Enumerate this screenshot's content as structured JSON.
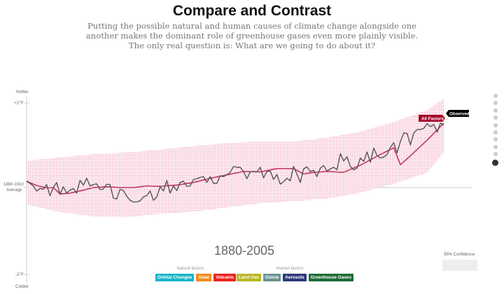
{
  "header": {
    "title": "Compare and Contrast",
    "subtitle_lines": [
      "Putting the possible natural and human causes of climate change alongside one",
      "another makes the dominant role of greenhouse gases even more plainly visible.",
      "The only real question is: What are we going to do about it?"
    ]
  },
  "axis_labels": {
    "hotter": "Hotter",
    "plus2": "+2˚F",
    "baseline_line1": "1880-1910",
    "baseline_line2": "Average",
    "minus2": "-2˚F",
    "colder": "Colder"
  },
  "year_range_label": "1880-2005",
  "confidence_label": "95% Confidence",
  "legend": {
    "natural_title": "Natural factors",
    "human_title": "Human factors",
    "natural": [
      {
        "label": "Orbital Changes",
        "color": "#19b5c9"
      },
      {
        "label": "Solar",
        "color": "#f08b1c"
      },
      {
        "label": "Volcanic",
        "color": "#e8231f"
      }
    ],
    "human": [
      {
        "label": "Land Use",
        "color": "#b8b824"
      },
      {
        "label": "Ozone",
        "color": "#6a9494"
      },
      {
        "label": "Aerosols",
        "color": "#2f3a7a"
      },
      {
        "label": "Greenhouse Gases",
        "color": "#1e6b35"
      }
    ]
  },
  "colors": {
    "observed": "#555555",
    "all_factors": "#c2375d",
    "confidence_band": "#f3b6c8",
    "all_factors_tag": "#a5002a",
    "observed_tag": "#000000"
  },
  "nav_dots": {
    "count": 10,
    "active_index": 9
  },
  "chart_data": {
    "type": "line",
    "xlim": [
      1880,
      2005
    ],
    "ylim": [
      -2,
      2
    ],
    "y_ticks": [
      2,
      0,
      -2
    ],
    "baseline_value": 0,
    "series": [
      {
        "name": "Observed",
        "x": [
          1880,
          1881,
          1882,
          1883,
          1884,
          1885,
          1886,
          1887,
          1888,
          1889,
          1890,
          1891,
          1892,
          1893,
          1894,
          1895,
          1896,
          1897,
          1898,
          1899,
          1900,
          1901,
          1902,
          1903,
          1904,
          1905,
          1906,
          1907,
          1908,
          1909,
          1910,
          1911,
          1912,
          1913,
          1914,
          1915,
          1916,
          1917,
          1918,
          1919,
          1920,
          1921,
          1922,
          1923,
          1924,
          1925,
          1926,
          1927,
          1928,
          1929,
          1930,
          1931,
          1932,
          1933,
          1934,
          1935,
          1936,
          1937,
          1938,
          1939,
          1940,
          1941,
          1942,
          1943,
          1944,
          1945,
          1946,
          1947,
          1948,
          1949,
          1950,
          1951,
          1952,
          1953,
          1954,
          1955,
          1956,
          1957,
          1958,
          1959,
          1960,
          1961,
          1962,
          1963,
          1964,
          1965,
          1966,
          1967,
          1968,
          1969,
          1970,
          1971,
          1972,
          1973,
          1974,
          1975,
          1976,
          1977,
          1978,
          1979,
          1980,
          1981,
          1982,
          1983,
          1984,
          1985,
          1986,
          1987,
          1988,
          1989,
          1990,
          1991,
          1992,
          1993,
          1994,
          1995,
          1996,
          1997,
          1998,
          1999,
          2000,
          2001,
          2002,
          2003,
          2004,
          2005
        ],
        "y": [
          0.15,
          0.1,
          0.04,
          -0.08,
          -0.02,
          -0.04,
          0.07,
          -0.19,
          0.0,
          0.12,
          -0.16,
          0.02,
          -0.13,
          -0.06,
          -0.02,
          -0.13,
          0.17,
          0.06,
          0.22,
          0.04,
          0.07,
          0.09,
          -0.05,
          -0.03,
          0.08,
          0.07,
          -0.25,
          -0.27,
          -0.04,
          -0.07,
          -0.2,
          -0.3,
          -0.34,
          -0.34,
          -0.31,
          -0.22,
          -0.19,
          -0.08,
          -0.3,
          -0.22,
          0.02,
          -0.08,
          0.17,
          -0.13,
          0.04,
          -0.07,
          0.12,
          0.15,
          0.03,
          0.04,
          0.19,
          0.21,
          0.24,
          0.26,
          0.12,
          0.26,
          0.1,
          0.1,
          0.28,
          0.26,
          0.3,
          0.36,
          0.5,
          0.48,
          0.48,
          0.38,
          0.21,
          0.37,
          0.38,
          0.37,
          0.48,
          0.23,
          0.38,
          0.39,
          0.19,
          0.31,
          0.08,
          0.14,
          0.22,
          0.16,
          0.5,
          0.32,
          0.12,
          0.44,
          0.49,
          0.38,
          0.41,
          0.26,
          0.46,
          0.52,
          0.39,
          0.44,
          0.48,
          0.42,
          0.8,
          0.63,
          0.73,
          0.5,
          0.42,
          0.46,
          0.7,
          0.62,
          0.84,
          0.6,
          0.93,
          0.76,
          0.7,
          0.72,
          0.78,
          0.95,
          1.06,
          0.82,
          1.09,
          1.29,
          1.28,
          1.01,
          1.29,
          1.37,
          1.37,
          1.4,
          1.51,
          1.44,
          1.49,
          1.31,
          1.52,
          1.48
        ]
      },
      {
        "name": "All Factors",
        "x": [
          1880,
          1883,
          1886,
          1888,
          1890,
          1893,
          1896,
          1900,
          1904,
          1908,
          1912,
          1916,
          1920,
          1925,
          1930,
          1935,
          1940,
          1945,
          1950,
          1955,
          1960,
          1963,
          1966,
          1970,
          1975,
          1980,
          1985,
          1990,
          1992,
          1995,
          2000,
          2005
        ],
        "y": [
          0.15,
          0.05,
          -0.01,
          0.0,
          -0.15,
          -0.13,
          -0.08,
          0.0,
          0.02,
          0.0,
          0.0,
          0.04,
          0.03,
          0.06,
          0.12,
          0.22,
          0.3,
          0.38,
          0.37,
          0.45,
          0.45,
          0.32,
          0.36,
          0.38,
          0.36,
          0.53,
          0.74,
          0.94,
          0.54,
          0.75,
          1.12,
          1.52
        ]
      }
    ],
    "confidence_band": {
      "x": [
        1880,
        1890,
        1900,
        1910,
        1920,
        1930,
        1940,
        1950,
        1960,
        1970,
        1980,
        1990,
        2000,
        2005
      ],
      "upper": [
        0.63,
        0.71,
        0.79,
        0.83,
        0.9,
        0.98,
        1.05,
        1.09,
        1.09,
        1.18,
        1.32,
        1.55,
        1.83,
        2.1
      ],
      "lower": [
        -0.4,
        -0.58,
        -0.68,
        -0.7,
        -0.62,
        -0.57,
        -0.47,
        -0.37,
        -0.32,
        -0.26,
        -0.12,
        0.09,
        0.35,
        0.83
      ]
    },
    "series_tags": [
      "All Factors",
      "Observed"
    ]
  }
}
